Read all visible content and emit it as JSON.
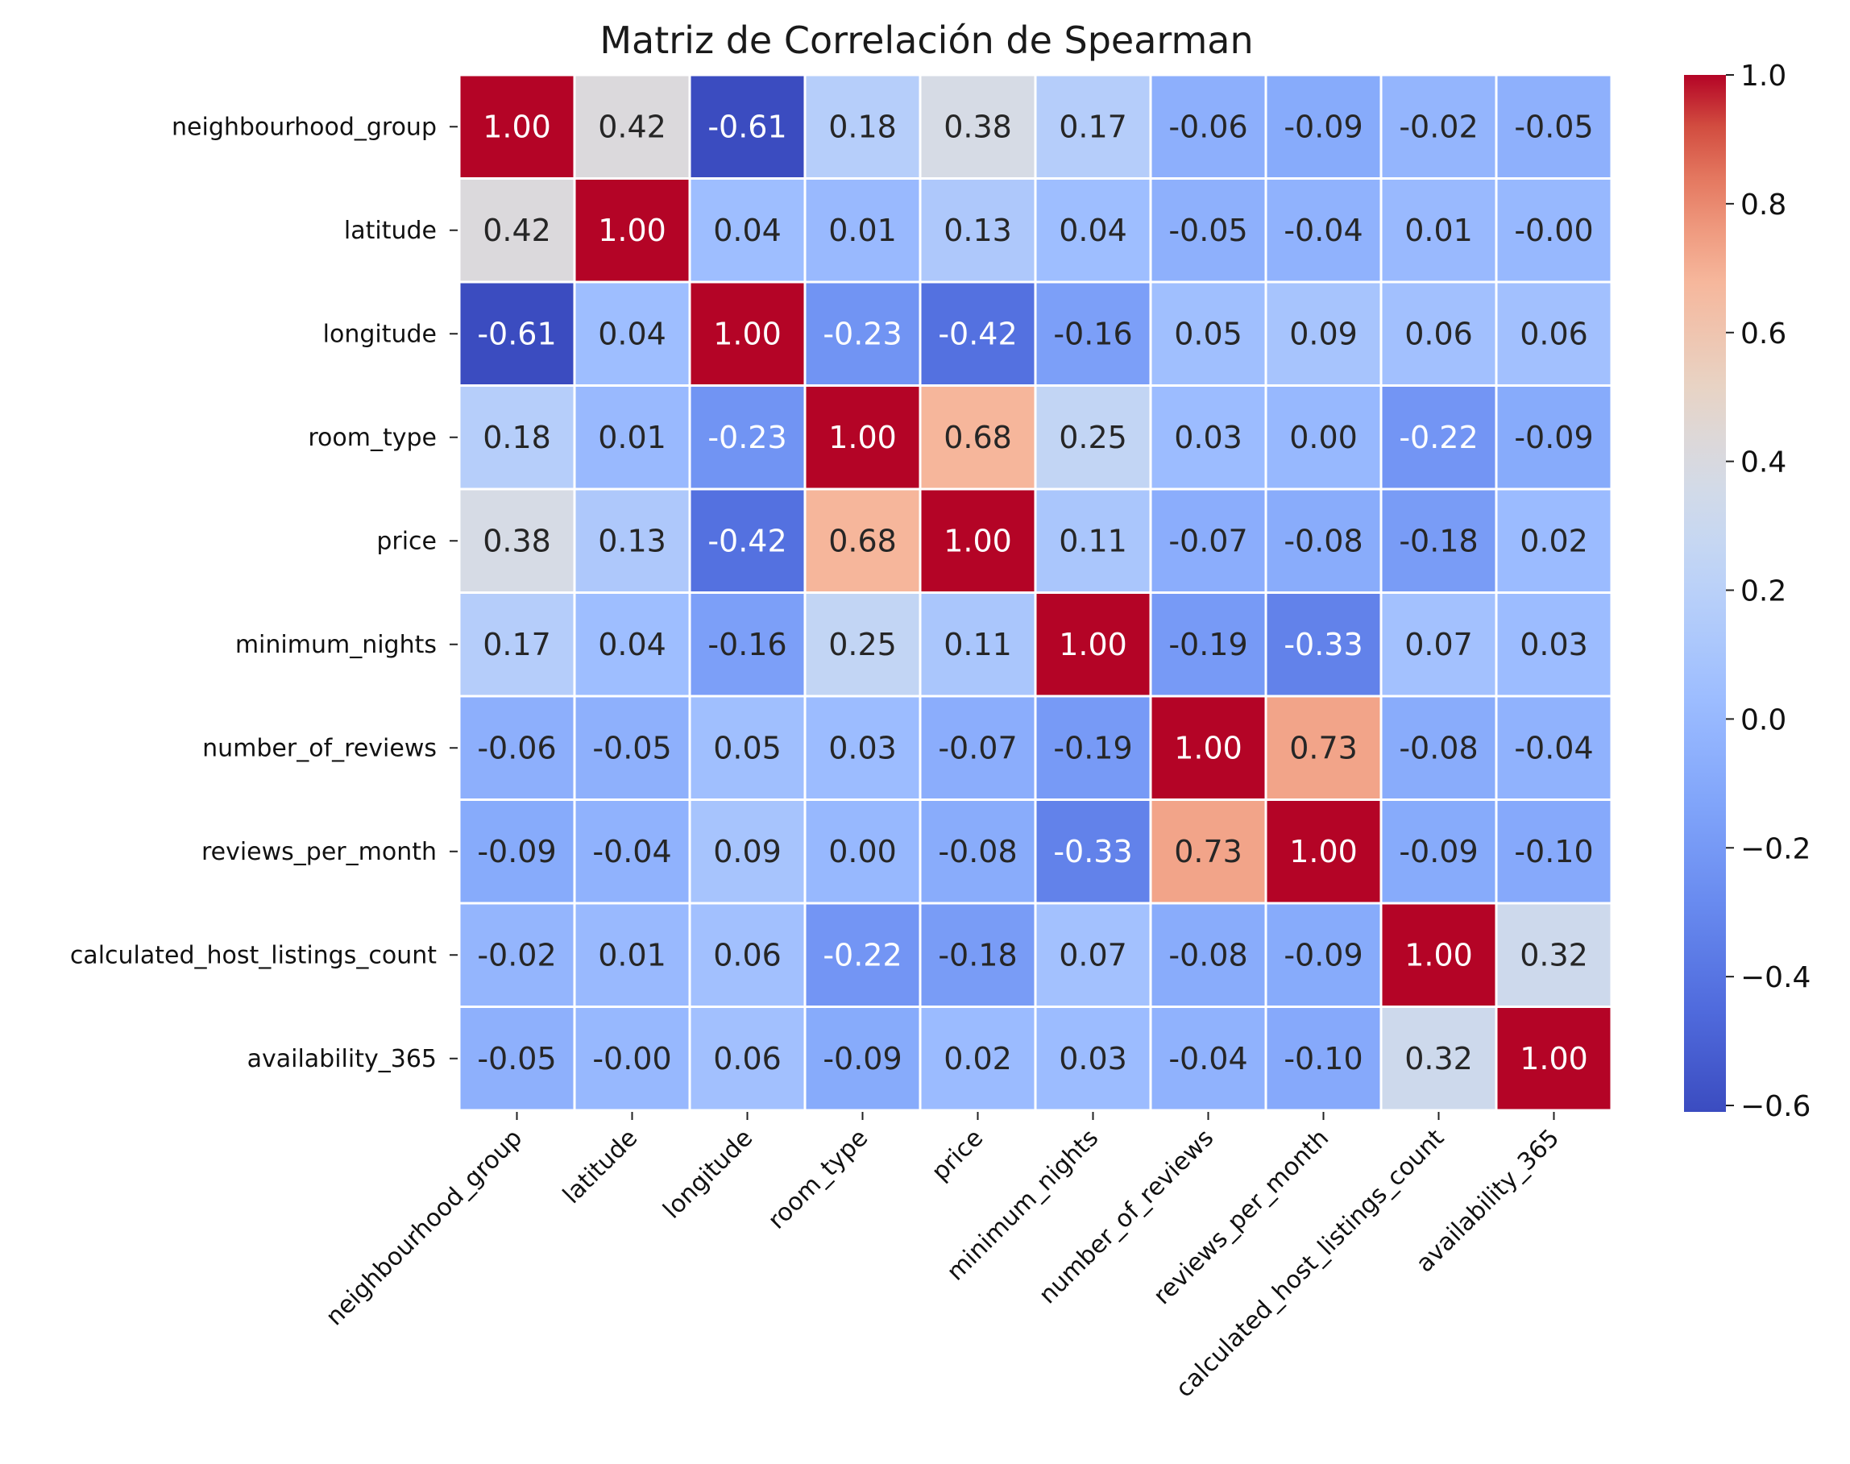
{
  "chart_data": {
    "type": "heatmap",
    "title": "Matriz de Correlación de Spearman",
    "colormap": "coolwarm",
    "vmin": -0.61,
    "vmax": 1.0,
    "labels": [
      "neighbourhood_group",
      "latitude",
      "longitude",
      "room_type",
      "price",
      "minimum_nights",
      "number_of_reviews",
      "reviews_per_month",
      "calculated_host_listings_count",
      "availability_365"
    ],
    "values": [
      [
        1.0,
        0.42,
        -0.61,
        0.18,
        0.38,
        0.17,
        -0.06,
        -0.09,
        -0.02,
        -0.05
      ],
      [
        0.42,
        1.0,
        0.04,
        0.01,
        0.13,
        0.04,
        -0.05,
        -0.04,
        0.01,
        -0.0
      ],
      [
        -0.61,
        0.04,
        1.0,
        -0.23,
        -0.42,
        -0.16,
        0.05,
        0.09,
        0.06,
        0.06
      ],
      [
        0.18,
        0.01,
        -0.23,
        1.0,
        0.68,
        0.25,
        0.03,
        0.0,
        -0.22,
        -0.09
      ],
      [
        0.38,
        0.13,
        -0.42,
        0.68,
        1.0,
        0.11,
        -0.07,
        -0.08,
        -0.18,
        0.02
      ],
      [
        0.17,
        0.04,
        -0.16,
        0.25,
        0.11,
        1.0,
        -0.19,
        -0.33,
        0.07,
        0.03
      ],
      [
        -0.06,
        -0.05,
        0.05,
        0.03,
        -0.07,
        -0.19,
        1.0,
        0.73,
        -0.08,
        -0.04
      ],
      [
        -0.09,
        -0.04,
        0.09,
        0.0,
        -0.08,
        -0.33,
        0.73,
        1.0,
        -0.09,
        -0.1
      ],
      [
        -0.02,
        0.01,
        0.06,
        -0.22,
        -0.18,
        0.07,
        -0.08,
        -0.09,
        1.0,
        0.32
      ],
      [
        -0.05,
        -0.0,
        0.06,
        -0.09,
        0.02,
        0.03,
        -0.04,
        -0.1,
        0.32,
        1.0
      ]
    ],
    "cell_text": [
      [
        "1.00",
        "0.42",
        "-0.61",
        "0.18",
        "0.38",
        "0.17",
        "-0.06",
        "-0.09",
        "-0.02",
        "-0.05"
      ],
      [
        "0.42",
        "1.00",
        "0.04",
        "0.01",
        "0.13",
        "0.04",
        "-0.05",
        "-0.04",
        "0.01",
        "-0.00"
      ],
      [
        "-0.61",
        "0.04",
        "1.00",
        "-0.23",
        "-0.42",
        "-0.16",
        "0.05",
        "0.09",
        "0.06",
        "0.06"
      ],
      [
        "0.18",
        "0.01",
        "-0.23",
        "1.00",
        "0.68",
        "0.25",
        "0.03",
        "0.00",
        "-0.22",
        "-0.09"
      ],
      [
        "0.38",
        "0.13",
        "-0.42",
        "0.68",
        "1.00",
        "0.11",
        "-0.07",
        "-0.08",
        "-0.18",
        "0.02"
      ],
      [
        "0.17",
        "0.04",
        "-0.16",
        "0.25",
        "0.11",
        "1.00",
        "-0.19",
        "-0.33",
        "0.07",
        "0.03"
      ],
      [
        "-0.06",
        "-0.05",
        "0.05",
        "0.03",
        "-0.07",
        "-0.19",
        "1.00",
        "0.73",
        "-0.08",
        "-0.04"
      ],
      [
        "-0.09",
        "-0.04",
        "0.09",
        "0.00",
        "-0.08",
        "-0.33",
        "0.73",
        "1.00",
        "-0.09",
        "-0.10"
      ],
      [
        "-0.02",
        "0.01",
        "0.06",
        "-0.22",
        "-0.18",
        "0.07",
        "-0.08",
        "-0.09",
        "1.00",
        "0.32"
      ],
      [
        "-0.05",
        "-0.00",
        "0.06",
        "-0.09",
        "0.02",
        "0.03",
        "-0.04",
        "-0.10",
        "0.32",
        "1.00"
      ]
    ],
    "colorbar": {
      "ticks": [
        1.0,
        0.8,
        0.6,
        0.4,
        0.2,
        0.0,
        -0.2,
        -0.4,
        -0.6
      ],
      "tick_labels": [
        "1.0",
        "0.8",
        "0.6",
        "0.4",
        "0.2",
        "0.0",
        "−0.2",
        "−0.4",
        "−0.6"
      ]
    },
    "grid": false,
    "legend": "colorbar-right"
  }
}
